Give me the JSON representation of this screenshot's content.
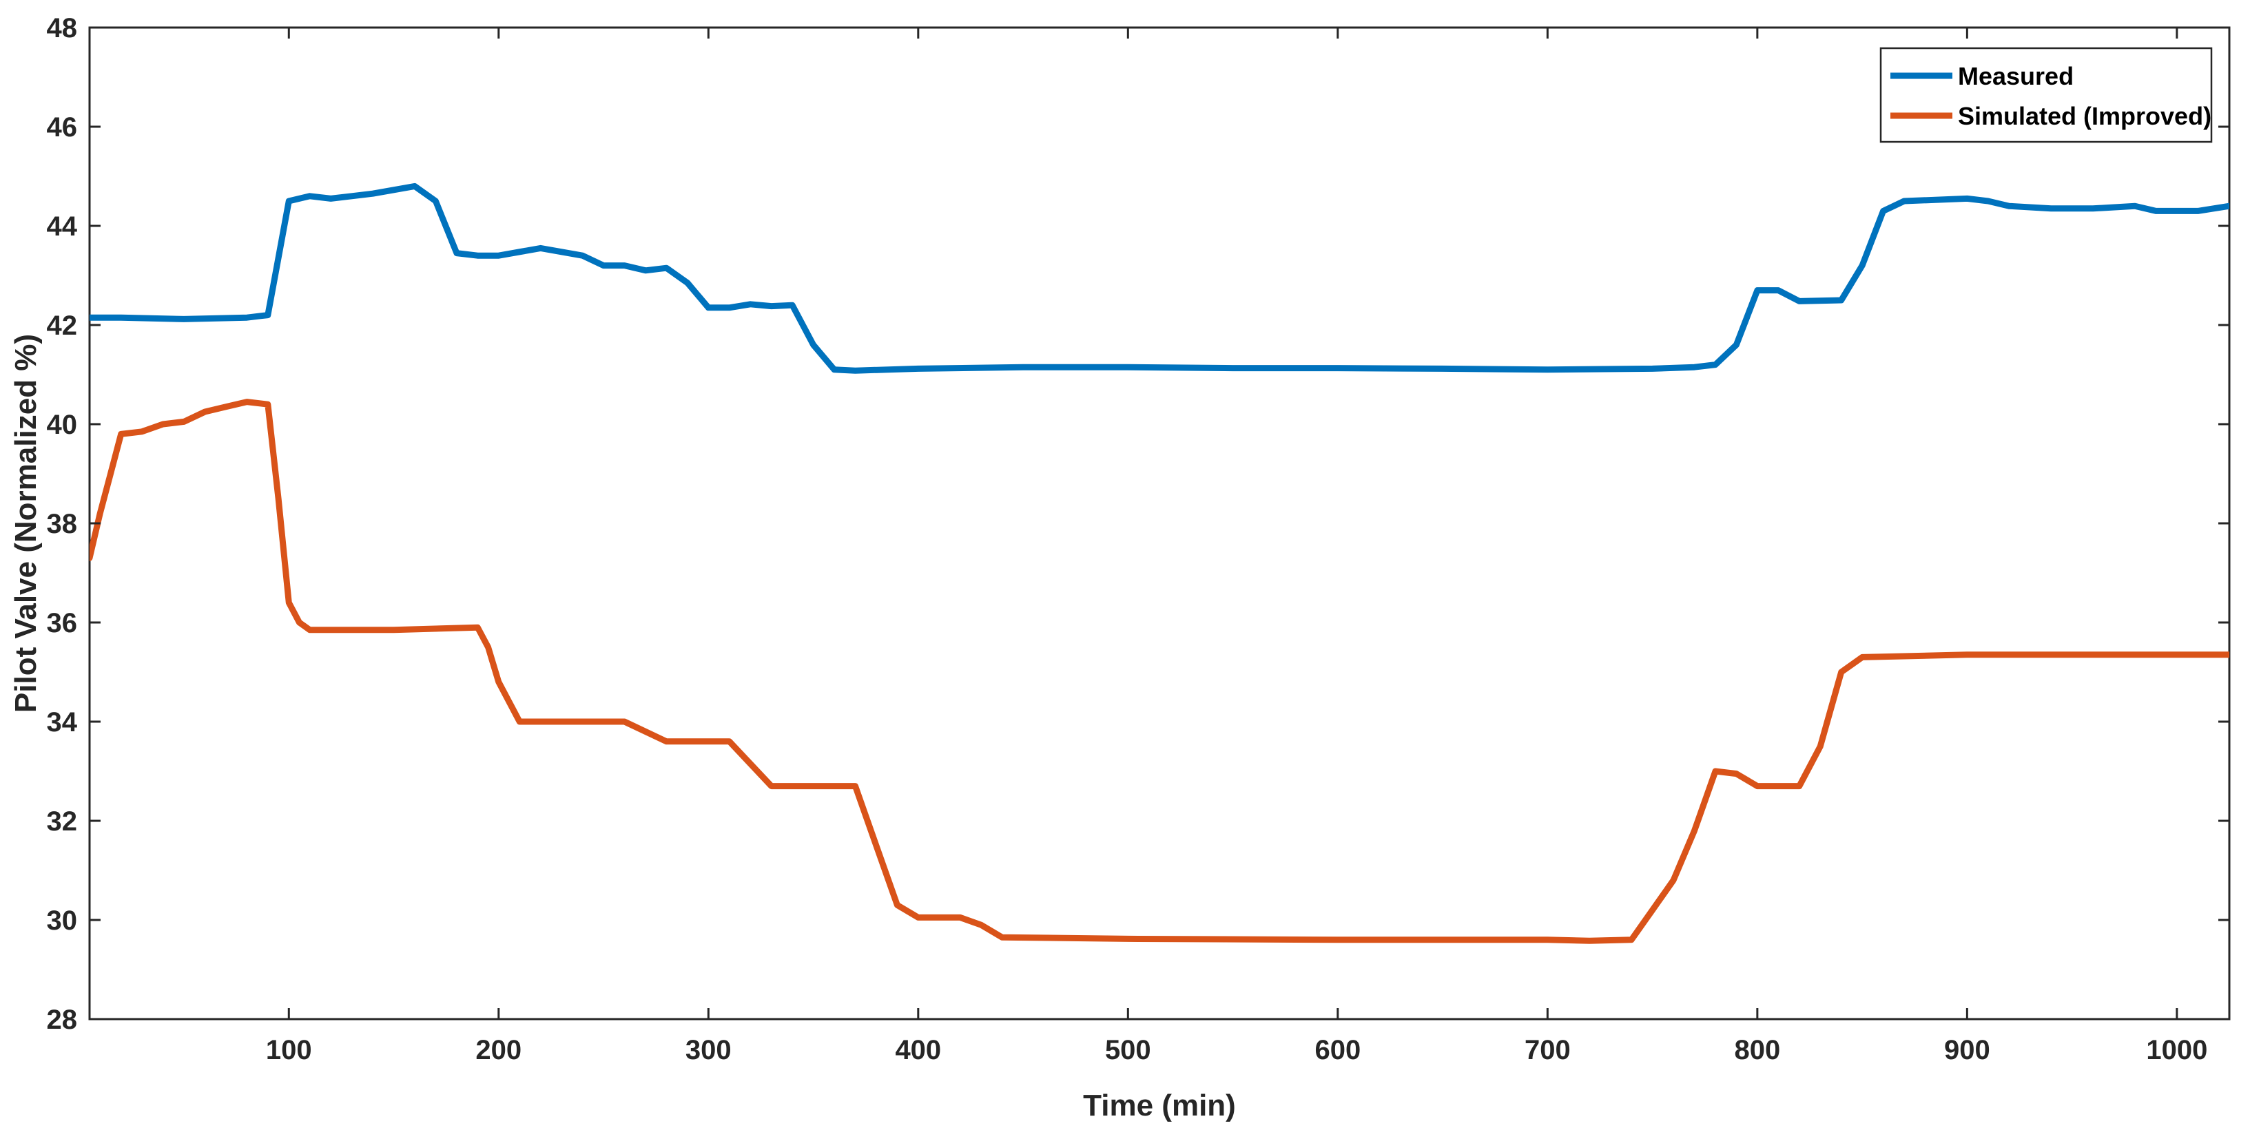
{
  "chart_data": {
    "type": "line",
    "xlabel": "Time (min)",
    "ylabel": "Pilot Valve (Normalized %)",
    "xlim": [
      5,
      1025
    ],
    "ylim": [
      28,
      48
    ],
    "xticks": [
      100,
      200,
      300,
      400,
      500,
      600,
      700,
      800,
      900,
      1000
    ],
    "yticks": [
      28,
      30,
      32,
      34,
      36,
      38,
      40,
      42,
      44,
      46,
      48
    ],
    "grid": false,
    "legend_position": "top-right",
    "series": [
      {
        "name": "Measured",
        "color": "#0072BD",
        "points": [
          [
            5,
            42.15
          ],
          [
            20,
            42.15
          ],
          [
            50,
            42.12
          ],
          [
            80,
            42.15
          ],
          [
            90,
            42.2
          ],
          [
            100,
            44.5
          ],
          [
            110,
            44.6
          ],
          [
            120,
            44.55
          ],
          [
            140,
            44.65
          ],
          [
            160,
            44.8
          ],
          [
            170,
            44.5
          ],
          [
            180,
            43.45
          ],
          [
            190,
            43.4
          ],
          [
            200,
            43.4
          ],
          [
            220,
            43.55
          ],
          [
            240,
            43.4
          ],
          [
            250,
            43.2
          ],
          [
            260,
            43.2
          ],
          [
            270,
            43.1
          ],
          [
            280,
            43.15
          ],
          [
            290,
            42.85
          ],
          [
            300,
            42.35
          ],
          [
            310,
            42.35
          ],
          [
            320,
            42.42
          ],
          [
            330,
            42.38
          ],
          [
            340,
            42.4
          ],
          [
            350,
            41.6
          ],
          [
            360,
            41.1
          ],
          [
            370,
            41.08
          ],
          [
            400,
            41.12
          ],
          [
            450,
            41.15
          ],
          [
            500,
            41.15
          ],
          [
            550,
            41.13
          ],
          [
            600,
            41.13
          ],
          [
            650,
            41.12
          ],
          [
            700,
            41.1
          ],
          [
            750,
            41.12
          ],
          [
            770,
            41.15
          ],
          [
            780,
            41.2
          ],
          [
            790,
            41.6
          ],
          [
            800,
            42.7
          ],
          [
            810,
            42.7
          ],
          [
            820,
            42.48
          ],
          [
            840,
            42.5
          ],
          [
            850,
            43.2
          ],
          [
            860,
            44.3
          ],
          [
            870,
            44.5
          ],
          [
            900,
            44.55
          ],
          [
            910,
            44.5
          ],
          [
            920,
            44.4
          ],
          [
            940,
            44.35
          ],
          [
            960,
            44.35
          ],
          [
            980,
            44.4
          ],
          [
            990,
            44.3
          ],
          [
            1010,
            44.3
          ],
          [
            1025,
            44.4
          ]
        ]
      },
      {
        "name": "Simulated (Improved)",
        "color": "#D95319",
        "points": [
          [
            5,
            37.3
          ],
          [
            10,
            38.2
          ],
          [
            15,
            39.0
          ],
          [
            20,
            39.8
          ],
          [
            30,
            39.85
          ],
          [
            40,
            40.0
          ],
          [
            50,
            40.05
          ],
          [
            60,
            40.25
          ],
          [
            70,
            40.35
          ],
          [
            80,
            40.45
          ],
          [
            90,
            40.4
          ],
          [
            95,
            38.5
          ],
          [
            100,
            36.4
          ],
          [
            105,
            36.0
          ],
          [
            110,
            35.85
          ],
          [
            150,
            35.85
          ],
          [
            190,
            35.9
          ],
          [
            195,
            35.5
          ],
          [
            200,
            34.8
          ],
          [
            210,
            34.0
          ],
          [
            260,
            34.0
          ],
          [
            280,
            33.6
          ],
          [
            310,
            33.6
          ],
          [
            330,
            32.7
          ],
          [
            370,
            32.7
          ],
          [
            380,
            31.5
          ],
          [
            390,
            30.3
          ],
          [
            400,
            30.05
          ],
          [
            420,
            30.05
          ],
          [
            430,
            29.9
          ],
          [
            440,
            29.65
          ],
          [
            500,
            29.62
          ],
          [
            600,
            29.6
          ],
          [
            700,
            29.6
          ],
          [
            720,
            29.58
          ],
          [
            740,
            29.6
          ],
          [
            750,
            30.2
          ],
          [
            760,
            30.8
          ],
          [
            770,
            31.8
          ],
          [
            780,
            33.0
          ],
          [
            790,
            32.95
          ],
          [
            800,
            32.7
          ],
          [
            820,
            32.7
          ],
          [
            830,
            33.5
          ],
          [
            840,
            35.0
          ],
          [
            850,
            35.3
          ],
          [
            900,
            35.35
          ],
          [
            1025,
            35.35
          ]
        ]
      }
    ]
  }
}
